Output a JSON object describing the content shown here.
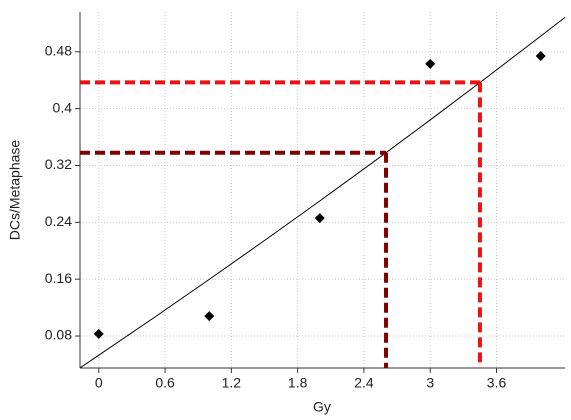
{
  "chart_data": {
    "type": "scatter",
    "xlabel": "Gy",
    "ylabel": "DCs/Metaphase",
    "xlim": [
      -0.17,
      4.22
    ],
    "ylim": [
      0.035,
      0.536
    ],
    "xticks": [
      0,
      0.6,
      1.2,
      1.8,
      2.4,
      3,
      3.6
    ],
    "yticks": [
      0.08,
      0.16,
      0.24,
      0.32,
      0.4,
      0.48
    ],
    "grid": true,
    "series": [
      {
        "style": "points",
        "color": "#000000",
        "x": [
          0,
          1,
          2,
          3,
          4
        ],
        "values": [
          0.083,
          0.108,
          0.246,
          0.463,
          0.474
        ]
      },
      {
        "style": "line",
        "color": "#000000",
        "x": [
          -0.17,
          0,
          0.5,
          1,
          1.5,
          2,
          2.5,
          3,
          3.5,
          4,
          4.22
        ],
        "values": [
          0.0352,
          0.053,
          0.1059,
          0.1597,
          0.2144,
          0.27,
          0.3266,
          0.3841,
          0.4426,
          0.502,
          0.5284
        ]
      }
    ],
    "guides": [
      {
        "x": 2.6,
        "y": 0.338,
        "color": "#800000"
      },
      {
        "x": 3.45,
        "y": 0.437,
        "color": "#ee1111"
      }
    ]
  }
}
